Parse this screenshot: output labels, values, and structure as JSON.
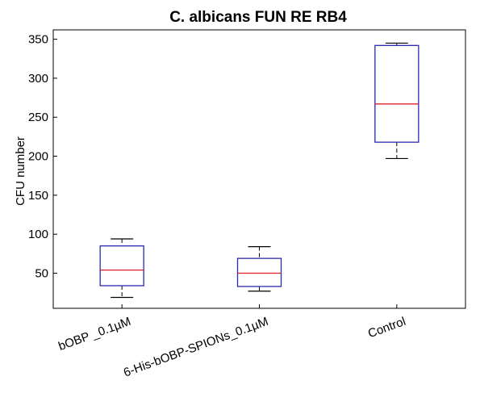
{
  "chart_data": {
    "type": "box",
    "title": "C. albicans FUN RE RB4",
    "xlabel": "",
    "ylabel": "CFU number",
    "ylim": [
      5,
      362
    ],
    "yticks": [
      50,
      100,
      150,
      200,
      250,
      300,
      350
    ],
    "categories": [
      "bOBP _0.1µM",
      "6-His-bOBP-SPIONs_0.1µM",
      "Control"
    ],
    "boxes": [
      {
        "min": 19,
        "q1": 34,
        "median": 54,
        "q3": 85,
        "max": 94
      },
      {
        "min": 27,
        "q1": 33,
        "median": 50,
        "q3": 69,
        "max": 84
      },
      {
        "min": 197,
        "q1": 218,
        "median": 267,
        "q3": 342,
        "max": 345
      }
    ],
    "colors": {
      "box": "#2b2bb0",
      "median": "#e0202a",
      "whisker": "#000000",
      "axes": "#000000"
    },
    "grid": false,
    "legend": "none"
  }
}
